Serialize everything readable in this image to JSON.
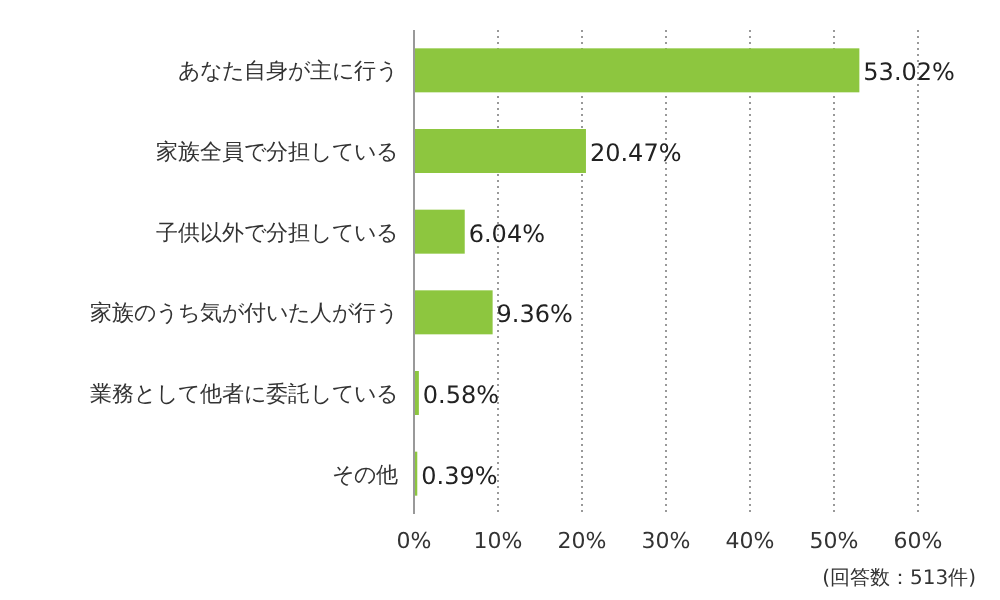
{
  "chart_data": {
    "type": "bar",
    "orientation": "horizontal",
    "categories": [
      "あなた自身が主に行う",
      "家族全員で分担している",
      "子供以外で分担している",
      "家族のうち気が付いた人が行う",
      "業務として他者に委託している",
      "その他"
    ],
    "values": [
      53.02,
      20.47,
      6.04,
      9.36,
      0.58,
      0.39
    ],
    "value_labels": [
      "53.02%",
      "20.47%",
      "6.04%",
      "9.36%",
      "0.58%",
      "0.39%"
    ],
    "color": "#8dc63f",
    "xlim": [
      0,
      60
    ],
    "xticks": [
      {
        "value": 0,
        "label": "0%"
      },
      {
        "value": 10,
        "label": "10%"
      },
      {
        "value": 20,
        "label": "20%"
      },
      {
        "value": 30,
        "label": "30%"
      },
      {
        "value": 40,
        "label": "40%"
      },
      {
        "value": 50,
        "label": "50%"
      },
      {
        "value": 60,
        "label": "60%"
      }
    ],
    "grid": "x",
    "annotations": [
      "(回答数：513件)"
    ]
  }
}
